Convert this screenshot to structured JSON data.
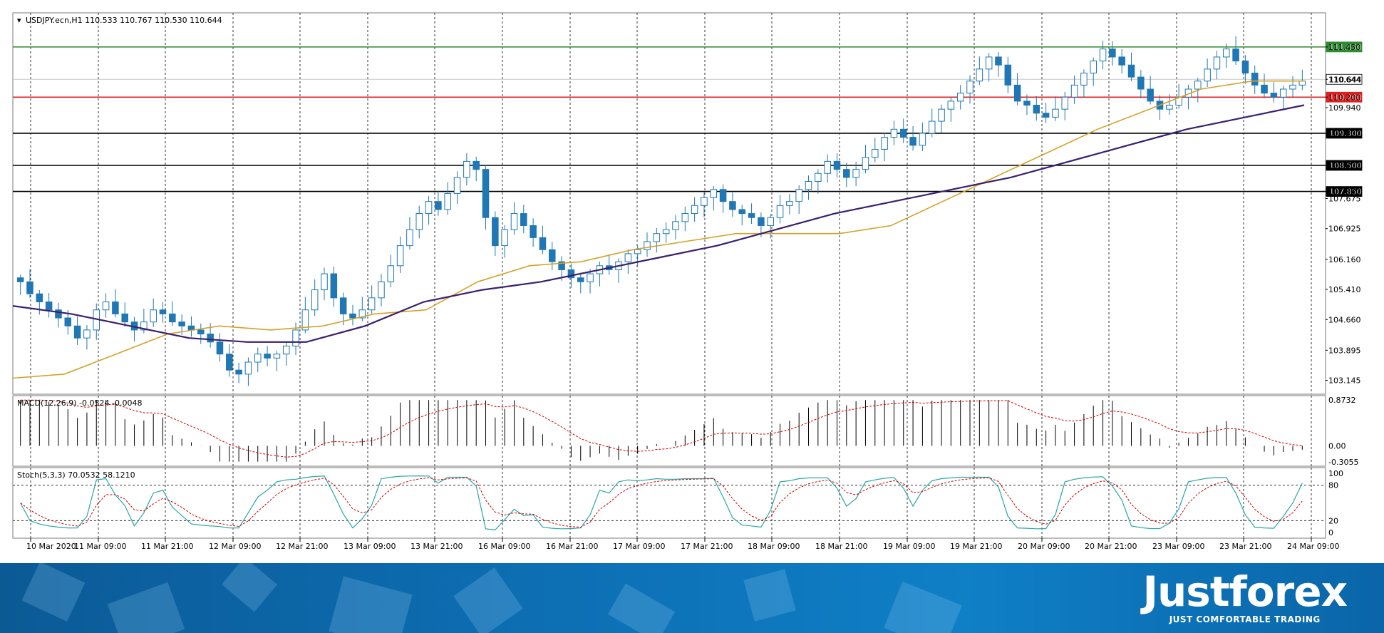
{
  "chart_data": [
    {
      "type": "candlestick",
      "symbol_header": "USDJPY.ecn,H1  110.533 110.767 110.530 110.644",
      "ylim": [
        102.8,
        112.3
      ],
      "y_ticks": [
        "111.450",
        "110.644",
        "110.200",
        "109.940",
        "109.300",
        "108.500",
        "107.850",
        "107.675",
        "106.925",
        "106.160",
        "105.410",
        "104.660",
        "103.895",
        "103.145"
      ],
      "x_ticks": [
        "10 Mar 2020",
        "11 Mar 09:00",
        "11 Mar 21:00",
        "12 Mar 09:00",
        "12 Mar 21:00",
        "13 Mar 09:00",
        "13 Mar 21:00",
        "16 Mar 09:00",
        "16 Mar 21:00",
        "17 Mar 09:00",
        "17 Mar 21:00",
        "18 Mar 09:00",
        "18 Mar 21:00",
        "19 Mar 09:00",
        "19 Mar 21:00",
        "20 Mar 09:00",
        "20 Mar 21:00",
        "23 Mar 09:00",
        "23 Mar 21:00",
        "24 Mar 09:00"
      ],
      "horizontal_levels": [
        {
          "value": 111.45,
          "label": "111.450",
          "color": "#2e8b2e"
        },
        {
          "value": 110.644,
          "label": "110.644",
          "color": "#c8c8c8"
        },
        {
          "value": 110.2,
          "label": "110.200",
          "color": "#e02020"
        },
        {
          "value": 109.3,
          "label": "109.300",
          "color": "#000000"
        },
        {
          "value": 108.5,
          "label": "108.500",
          "color": "#000000"
        },
        {
          "value": 107.85,
          "label": "107.850",
          "color": "#000000"
        }
      ],
      "close_path": [
        105.6,
        105.3,
        105.1,
        104.9,
        104.7,
        104.5,
        104.2,
        104.4,
        104.9,
        105.1,
        104.8,
        104.6,
        104.4,
        104.6,
        104.9,
        104.8,
        104.6,
        104.5,
        104.4,
        104.3,
        104.1,
        103.8,
        103.4,
        103.3,
        103.6,
        103.8,
        103.7,
        103.8,
        104.0,
        104.4,
        104.9,
        105.4,
        105.8,
        105.2,
        104.8,
        104.7,
        104.9,
        105.2,
        105.6,
        106.0,
        106.5,
        106.9,
        107.3,
        107.6,
        107.4,
        107.8,
        108.2,
        108.6,
        108.4,
        107.2,
        106.5,
        106.9,
        107.3,
        107.0,
        106.7,
        106.4,
        106.1,
        105.9,
        105.7,
        105.6,
        105.8,
        106.0,
        105.9,
        106.1,
        106.3,
        106.4,
        106.6,
        106.8,
        106.9,
        107.1,
        107.3,
        107.5,
        107.7,
        107.9,
        107.6,
        107.4,
        107.3,
        107.2,
        107.0,
        107.2,
        107.5,
        107.6,
        107.9,
        108.1,
        108.3,
        108.6,
        108.4,
        108.2,
        108.4,
        108.7,
        108.9,
        109.2,
        109.4,
        109.2,
        109.0,
        109.3,
        109.6,
        109.9,
        110.1,
        110.3,
        110.6,
        110.9,
        111.2,
        111.0,
        110.5,
        110.1,
        110.0,
        109.8,
        109.7,
        109.9,
        110.2,
        110.5,
        110.8,
        111.1,
        111.4,
        111.2,
        111.0,
        110.7,
        110.4,
        110.1,
        109.9,
        110.0,
        110.2,
        110.4,
        110.6,
        110.9,
        111.2,
        111.4,
        111.1,
        110.8,
        110.5,
        110.3,
        110.2,
        110.4,
        110.5,
        110.6
      ],
      "ma_fast": {
        "color": "#d2a32a",
        "start": 103.2,
        "points": [
          103.2,
          103.3,
          103.8,
          104.3,
          104.5,
          104.4,
          104.5,
          104.8,
          104.9,
          105.6,
          106.0,
          106.1,
          106.4,
          106.6,
          106.8,
          106.8,
          106.8,
          107.0,
          107.6,
          108.2,
          108.8,
          109.4,
          109.9,
          110.4,
          110.6,
          110.6
        ]
      },
      "ma_slow": {
        "color": "#3a1f6e",
        "points": [
          105.0,
          104.8,
          104.5,
          104.2,
          104.1,
          104.1,
          104.5,
          105.1,
          105.4,
          105.6,
          105.9,
          106.2,
          106.5,
          106.9,
          107.3,
          107.6,
          107.9,
          108.2,
          108.6,
          109.0,
          109.4,
          109.7,
          110.0
        ]
      },
      "lines_legend": []
    },
    {
      "type": "bar",
      "indicator": "MACD(12,26,9) -0.0524 -0.0048",
      "y_ticks": [
        "0.8732",
        "0.00",
        "-0.3055"
      ],
      "ylim": [
        -0.3055,
        0.8732
      ]
    },
    {
      "type": "line",
      "indicator": "Stoch(5,3,3) 70.0532 58.1210",
      "y_ticks": [
        "100",
        "80",
        "20",
        "0"
      ],
      "ylim": [
        0,
        100
      ]
    }
  ],
  "branding": {
    "logo": "Justforex",
    "slogan": "JUST COMFORTABLE TRADING"
  },
  "colors": {
    "candle": "#1f77b4",
    "macd_signal": "#cc0000",
    "stoch_main": "#2aa6a6",
    "stoch_signal": "#cc0000",
    "banner": "#0d6fb4"
  }
}
